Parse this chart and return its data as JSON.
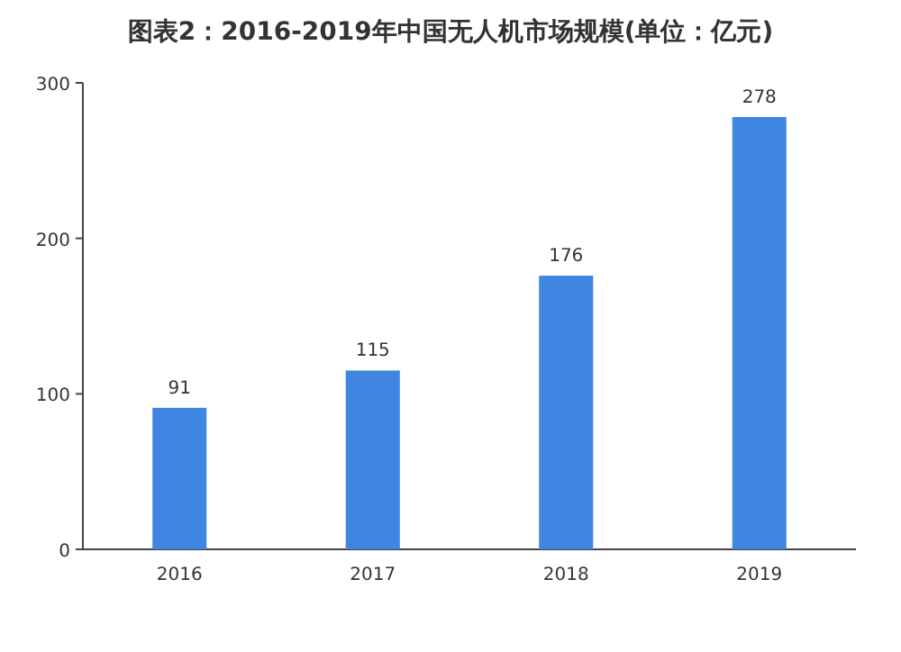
{
  "chart_data": {
    "type": "bar",
    "title": "图表2：2016-2019年中国无人机市场规模(单位：亿元)",
    "categories": [
      "2016",
      "2017",
      "2018",
      "2019"
    ],
    "values": [
      91,
      115,
      176,
      278
    ],
    "color": "#3f86e0",
    "ylim": [
      0,
      300
    ],
    "yticks": [
      0,
      100,
      200,
      300
    ],
    "grid": false,
    "data_labels": true
  }
}
